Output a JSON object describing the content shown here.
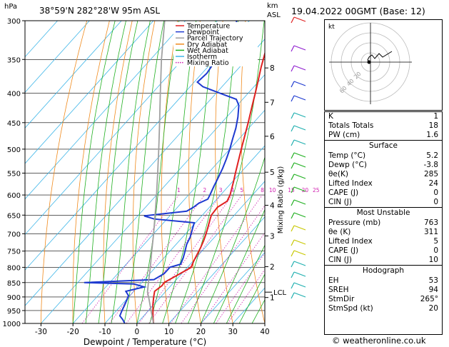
{
  "header": {
    "location": "38°59'N  282°28'W  95m  ASL",
    "datetime": "19.04.2022  00GMT  (Base: 12)",
    "hpa_label": "hPa",
    "km_label": "km",
    "asl_label": "ASL"
  },
  "footer": {
    "credit": "© weatheronline.co.uk"
  },
  "chart_data": {
    "type": "line",
    "xlabel": "Dewpoint / Temperature (°C)",
    "ylabel_right": "Mixing Ratio (g/kg)",
    "xlim": [
      -35,
      40
    ],
    "ylim": [
      1000,
      300
    ],
    "pressure_ticks": [
      300,
      350,
      400,
      450,
      500,
      550,
      600,
      650,
      700,
      750,
      800,
      850,
      900,
      950,
      1000
    ],
    "temp_ticks": [
      -30,
      -20,
      -10,
      0,
      10,
      20,
      30,
      40
    ],
    "km_ticks": [
      {
        "label": "8",
        "p": 362
      },
      {
        "label": "7",
        "p": 415
      },
      {
        "label": "6",
        "p": 475
      },
      {
        "label": "5",
        "p": 548
      },
      {
        "label": "4",
        "p": 625
      },
      {
        "label": "3",
        "p": 706
      },
      {
        "label": "2",
        "p": 798
      },
      {
        "label": "1",
        "p": 902
      }
    ],
    "lcl": {
      "label": "LCL",
      "p": 883
    },
    "mixing_ratio_labels": [
      "1",
      "2",
      "3",
      "4",
      "5",
      "8",
      "10",
      "15",
      "20",
      "25"
    ],
    "legend": [
      "Temperature",
      "Dewpoint",
      "Parcel Trajectory",
      "Dry Adiabat",
      "Wet Adiabat",
      "Isotherm",
      "Mixing Ratio"
    ],
    "series": [
      {
        "name": "Temperature",
        "color": "#e02020",
        "points": [
          [
            1000,
            5.2
          ],
          [
            975,
            3.2
          ],
          [
            950,
            1.4
          ],
          [
            925,
            -0.5
          ],
          [
            900,
            -2.2
          ],
          [
            880,
            -3.5
          ],
          [
            860,
            -2.8
          ],
          [
            850,
            -3.0
          ],
          [
            820,
            -0.5
          ],
          [
            800,
            1.2
          ],
          [
            780,
            0.2
          ],
          [
            760,
            -0.6
          ],
          [
            740,
            -1.4
          ],
          [
            720,
            -2.4
          ],
          [
            700,
            -3.6
          ],
          [
            680,
            -5.0
          ],
          [
            660,
            -6.5
          ],
          [
            650,
            -7.2
          ],
          [
            630,
            -7.5
          ],
          [
            615,
            -6.2
          ],
          [
            600,
            -7.0
          ],
          [
            570,
            -9.6
          ],
          [
            550,
            -11.5
          ],
          [
            520,
            -14.4
          ],
          [
            500,
            -16.4
          ],
          [
            470,
            -19.5
          ],
          [
            450,
            -21.7
          ],
          [
            420,
            -25.3
          ],
          [
            400,
            -27.8
          ],
          [
            380,
            -30.5
          ],
          [
            360,
            -33.4
          ],
          [
            340,
            -36.2
          ],
          [
            320,
            -39.4
          ],
          [
            300,
            -42.5
          ]
        ]
      },
      {
        "name": "Dewpoint",
        "color": "#1e3ad0",
        "points": [
          [
            1000,
            -3.8
          ],
          [
            985,
            -5.5
          ],
          [
            970,
            -7.5
          ],
          [
            950,
            -8.3
          ],
          [
            930,
            -9.0
          ],
          [
            910,
            -9.8
          ],
          [
            895,
            -10.5
          ],
          [
            880,
            -12.5
          ],
          [
            865,
            -8.0
          ],
          [
            855,
            -12.0
          ],
          [
            850,
            -28.0
          ],
          [
            840,
            -7.0
          ],
          [
            820,
            -5.5
          ],
          [
            800,
            -5.5
          ],
          [
            790,
            -3.0
          ],
          [
            770,
            -4.0
          ],
          [
            750,
            -5.3
          ],
          [
            730,
            -6.7
          ],
          [
            710,
            -7.6
          ],
          [
            690,
            -9.0
          ],
          [
            670,
            -10.4
          ],
          [
            660,
            -24.0
          ],
          [
            652,
            -28.0
          ],
          [
            640,
            -16.0
          ],
          [
            630,
            -15.0
          ],
          [
            620,
            -14.5
          ],
          [
            610,
            -12.8
          ],
          [
            600,
            -13.3
          ],
          [
            580,
            -14.5
          ],
          [
            560,
            -15.6
          ],
          [
            540,
            -16.8
          ],
          [
            520,
            -18.3
          ],
          [
            500,
            -20.0
          ],
          [
            480,
            -22.0
          ],
          [
            460,
            -24.0
          ],
          [
            440,
            -26.5
          ],
          [
            420,
            -29.5
          ],
          [
            410,
            -32.0
          ],
          [
            400,
            -39.0
          ],
          [
            390,
            -46.0
          ],
          [
            383,
            -49.0
          ],
          [
            370,
            -48.5
          ],
          [
            360,
            -49.0
          ],
          [
            350,
            -51.0
          ],
          [
            340,
            -50.0
          ],
          [
            330,
            -53.0
          ],
          [
            320,
            -55.0
          ],
          [
            310,
            -52.0
          ],
          [
            300,
            -54.0
          ]
        ]
      },
      {
        "name": "Parcel Trajectory",
        "color": "#a0a0a0",
        "points": [
          [
            1000,
            5.2
          ],
          [
            950,
            0.8
          ],
          [
            900,
            -3.8
          ],
          [
            883,
            -5.5
          ],
          [
            850,
            -7.9
          ],
          [
            800,
            -11.6
          ],
          [
            750,
            -15.7
          ],
          [
            700,
            -20.0
          ],
          [
            650,
            -24.8
          ],
          [
            600,
            -30.0
          ],
          [
            550,
            -35.8
          ],
          [
            500,
            -42.2
          ],
          [
            450,
            -49.4
          ],
          [
            400,
            -57.5
          ],
          [
            350,
            -66.6
          ],
          [
            300,
            -76.5
          ]
        ]
      }
    ]
  },
  "hodograph": {
    "corner_label": "kt",
    "rings": [
      "20",
      "40",
      "60"
    ]
  },
  "stats": {
    "general": [
      {
        "label": "K",
        "value": "1"
      },
      {
        "label": "Totals Totals",
        "value": "18"
      },
      {
        "label": "PW (cm)",
        "value": "1.6"
      }
    ],
    "surface_title": "Surface",
    "surface": [
      {
        "label": "Temp (°C)",
        "value": "5.2"
      },
      {
        "label": "Dewp (°C)",
        "value": "-3.8"
      },
      {
        "label": "θe(K)",
        "value": "285"
      },
      {
        "label": "Lifted Index",
        "value": "24"
      },
      {
        "label": "CAPE (J)",
        "value": "0"
      },
      {
        "label": "CIN (J)",
        "value": "0"
      }
    ],
    "unstable_title": "Most Unstable",
    "unstable": [
      {
        "label": "Pressure (mb)",
        "value": "763"
      },
      {
        "label": "θe (K)",
        "value": "311"
      },
      {
        "label": "Lifted Index",
        "value": "5"
      },
      {
        "label": "CAPE (J)",
        "value": "0"
      },
      {
        "label": "CIN (J)",
        "value": "10"
      }
    ],
    "hodo_title": "Hodograph",
    "hodo": [
      {
        "label": "EH",
        "value": "53"
      },
      {
        "label": "SREH",
        "value": "94"
      },
      {
        "label": "StmDir",
        "value": "265°"
      },
      {
        "label": "StmSpd (kt)",
        "value": "20"
      }
    ]
  }
}
